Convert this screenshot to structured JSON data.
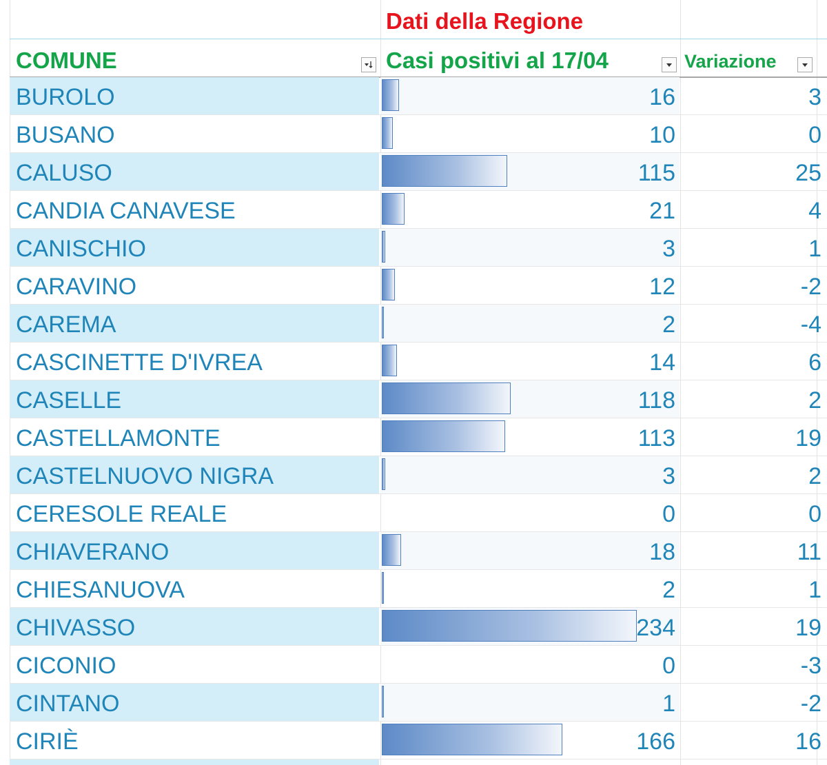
{
  "header": {
    "region_title": "Dati della Regione",
    "col_comune": "COMUNE",
    "col_casi": "Casi positivi al 17/04",
    "col_variazione": "Variazione"
  },
  "bar_scale_max": 234,
  "colors": {
    "title_red": "#e8141d",
    "header_green": "#14a44a",
    "cell_text_blue": "#1f85b8",
    "band_light_blue": "#d3eef9",
    "bar_blue": "#5d8ac7"
  },
  "icons": {
    "comune_filter": "sort-filter-icon",
    "casi_filter": "dropdown-arrow-icon",
    "variazione_filter": "dropdown-arrow-icon"
  },
  "rows": [
    {
      "comune": "BUROLO",
      "casi": "16",
      "variazione": "3",
      "value": 16
    },
    {
      "comune": "BUSANO",
      "casi": "10",
      "variazione": "0",
      "value": 10
    },
    {
      "comune": "CALUSO",
      "casi": "115",
      "variazione": "25",
      "value": 115
    },
    {
      "comune": "CANDIA CANAVESE",
      "casi": "21",
      "variazione": "4",
      "value": 21
    },
    {
      "comune": "CANISCHIO",
      "casi": "3",
      "variazione": "1",
      "value": 3
    },
    {
      "comune": "CARAVINO",
      "casi": "12",
      "variazione": "-2",
      "value": 12
    },
    {
      "comune": "CAREMA",
      "casi": "2",
      "variazione": "-4",
      "value": 2
    },
    {
      "comune": "CASCINETTE D'IVREA",
      "casi": "14",
      "variazione": "6",
      "value": 14
    },
    {
      "comune": "CASELLE",
      "casi": "118",
      "variazione": "2",
      "value": 118
    },
    {
      "comune": "CASTELLAMONTE",
      "casi": "113",
      "variazione": "19",
      "value": 113
    },
    {
      "comune": "CASTELNUOVO NIGRA",
      "casi": "3",
      "variazione": "2",
      "value": 3
    },
    {
      "comune": "CERESOLE REALE",
      "casi": "0",
      "variazione": "0",
      "value": 0
    },
    {
      "comune": "CHIAVERANO",
      "casi": "18",
      "variazione": "11",
      "value": 18
    },
    {
      "comune": "CHIESANUOVA",
      "casi": "2",
      "variazione": "1",
      "value": 2
    },
    {
      "comune": "CHIVASSO",
      "casi": "234",
      "variazione": "19",
      "value": 234
    },
    {
      "comune": "CICONIO",
      "casi": "0",
      "variazione": "-3",
      "value": 0
    },
    {
      "comune": "CINTANO",
      "casi": "1",
      "variazione": "-2",
      "value": 1
    },
    {
      "comune": "CIRIÈ",
      "casi": "166",
      "variazione": "16",
      "value": 166
    }
  ]
}
